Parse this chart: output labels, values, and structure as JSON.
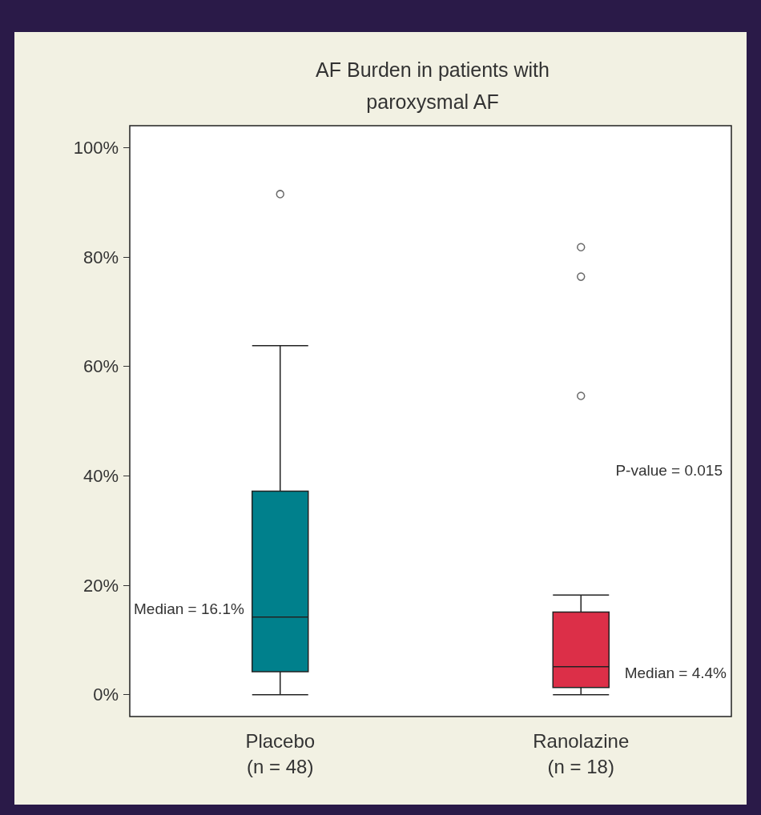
{
  "chart_data": {
    "type": "box",
    "title": "AF Burden in patients with\nparoxysmal AF",
    "categories": [
      "Placebo\n(n = 48)",
      "Ranolazine\n(n = 18)"
    ],
    "series": [
      {
        "boxes": [
          {
            "low": 0,
            "q1": 4.2,
            "median": 14.2,
            "q3": 37.2,
            "high": 63.8,
            "outliers": [
              91.5
            ]
          },
          {
            "low": 0,
            "q1": 1.3,
            "median": 5.1,
            "q3": 15.1,
            "high": 18.2,
            "outliers": [
              81.8,
              76.4,
              54.6
            ]
          }
        ],
        "colors": [
          "#00808c",
          "#dc2f48"
        ]
      }
    ],
    "ylim": [
      -4,
      104
    ],
    "yticks": [
      {
        "value": 0,
        "label": "0%"
      },
      {
        "value": 20,
        "label": "20%"
      },
      {
        "value": 40,
        "label": "40%"
      },
      {
        "value": 60,
        "label": "60%"
      },
      {
        "value": 80,
        "label": "80%"
      },
      {
        "value": 100,
        "label": "100%"
      }
    ],
    "grid": false,
    "marker": "circle",
    "annotations": [
      {
        "text": "Median = 16.1%",
        "x": "Placebo\n(n = 48)",
        "y": 14.2
      },
      {
        "text": "Median = 4.4%",
        "x": "Ranolazine\n(n = 18)",
        "y": 5.1
      },
      "P-value = 0.015"
    ]
  }
}
